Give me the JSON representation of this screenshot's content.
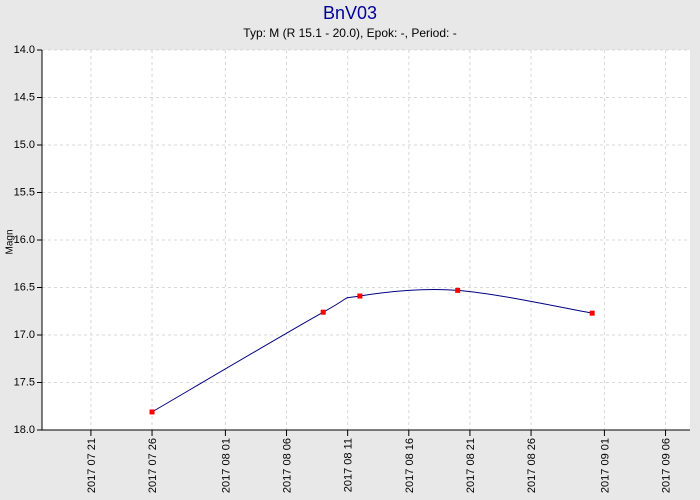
{
  "chart_data": {
    "type": "line",
    "title": "BnV03",
    "subtitle": "Typ: M (R 15.1 - 20.0), Epok: -, Period: -",
    "y_label": "Magn",
    "x": [
      "2017-07-26",
      "2017-08-09",
      "2017-08-12",
      "2017-08-20",
      "2017-08-31"
    ],
    "series": [
      {
        "color": "#000080",
        "marker_color": "#ff0000",
        "values": [
          17.81,
          16.76,
          16.59,
          16.53,
          16.77
        ]
      }
    ],
    "xlim": [
      "2017-07-17",
      "2017-09-08"
    ],
    "xticks": [
      {
        "value": "2017-07-21",
        "label": "2017 07 21"
      },
      {
        "value": "2017-07-26",
        "label": "2017 07 26"
      },
      {
        "value": "2017-08-01",
        "label": "2017 08 01"
      },
      {
        "value": "2017-08-06",
        "label": "2017 08 06"
      },
      {
        "value": "2017-08-11",
        "label": "2017 08 11"
      },
      {
        "value": "2017-08-16",
        "label": "2017 08 16"
      },
      {
        "value": "2017-08-21",
        "label": "2017 08 21"
      },
      {
        "value": "2017-08-26",
        "label": "2017 08 26"
      },
      {
        "value": "2017-09-01",
        "label": "2017 09 01"
      },
      {
        "value": "2017-09-06",
        "label": "2017 09 06"
      }
    ],
    "ylim": [
      14,
      18
    ],
    "y_inverted": true,
    "yticks": [
      {
        "value": 14,
        "label": "14.0"
      },
      14.5,
      {
        "value": 15,
        "label": "15.0"
      },
      15.5,
      {
        "value": 16,
        "label": "16.0"
      },
      16.5,
      {
        "value": 17,
        "label": "17.0"
      },
      17.5,
      {
        "value": 18,
        "label": "18.0"
      }
    ],
    "grid": true
  }
}
